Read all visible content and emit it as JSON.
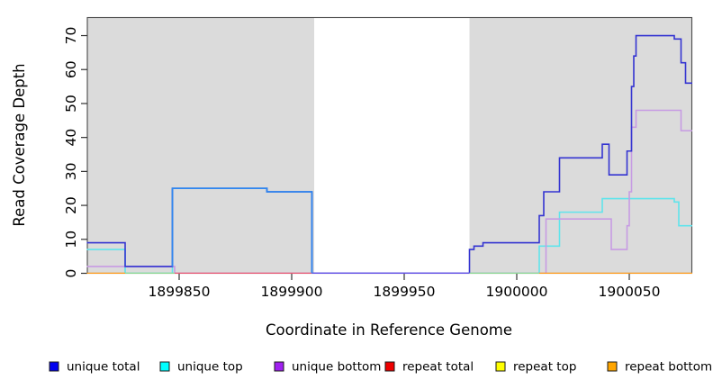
{
  "chart_data": {
    "type": "step-line",
    "title": "",
    "x_axis": {
      "label": "Coordinate in Reference Genome",
      "range": [
        1899809,
        1900078
      ],
      "ticks": [
        1899850,
        1899900,
        1899950,
        1900000,
        1900050
      ]
    },
    "y_axis": {
      "label": "Read Coverage Depth",
      "range": [
        0,
        74
      ],
      "ticks": [
        0,
        10,
        20,
        30,
        40,
        50,
        60,
        70
      ]
    },
    "background_color": "#ffffff",
    "shaded_region_color": "#dbdbdb",
    "shaded_regions": [
      {
        "from": 1899809,
        "to": 1899910
      },
      {
        "from": 1899979,
        "to": 1900078
      }
    ],
    "unshaded_gap": {
      "from": 1899910,
      "to": 1899979
    },
    "series": [
      {
        "name": "unique total",
        "legend_color": "#0000ee",
        "line_color": "#3434d1",
        "steps": [
          [
            1899809,
            9
          ],
          [
            1899826,
            2
          ],
          [
            1899847,
            25
          ],
          [
            1899889,
            24
          ],
          [
            1899909,
            0
          ],
          [
            1899979,
            7
          ],
          [
            1899981,
            8
          ],
          [
            1899985,
            9
          ],
          [
            1900010,
            17
          ],
          [
            1900012,
            24
          ],
          [
            1900019,
            34
          ],
          [
            1900038,
            38
          ],
          [
            1900041,
            29
          ],
          [
            1900049,
            36
          ],
          [
            1900051,
            55
          ],
          [
            1900052,
            64
          ],
          [
            1900053,
            70
          ],
          [
            1900070,
            69
          ],
          [
            1900073,
            62
          ],
          [
            1900075,
            56
          ]
        ],
        "end": 1900078
      },
      {
        "name": "unique top",
        "legend_color": "#00ffff",
        "line_color": "#5fe4ec",
        "steps": [
          [
            1899809,
            7
          ],
          [
            1899826,
            0
          ],
          [
            1899847,
            25
          ],
          [
            1899889,
            24
          ],
          [
            1899909,
            0
          ],
          [
            1900010,
            8
          ],
          [
            1900019,
            18
          ],
          [
            1900038,
            22
          ],
          [
            1900070,
            21
          ],
          [
            1900072,
            14
          ]
        ],
        "end": 1900078
      },
      {
        "name": "unique bottom",
        "legend_color": "#a020f0",
        "line_color": "#c79be3",
        "steps": [
          [
            1899809,
            2
          ],
          [
            1899848,
            0
          ],
          [
            1900013,
            16
          ],
          [
            1900042,
            7
          ],
          [
            1900049,
            14
          ],
          [
            1900050,
            24
          ],
          [
            1900051,
            43
          ],
          [
            1900053,
            48
          ],
          [
            1900073,
            42
          ]
        ],
        "end": 1900078
      },
      {
        "name": "repeat total",
        "legend_color": "#ee0000",
        "line_color": "#e85a75",
        "steps": [
          [
            1899809,
            0
          ]
        ],
        "end": 1900078
      },
      {
        "name": "repeat top",
        "legend_color": "#ffff00",
        "line_color": "#f2e96a",
        "steps": [
          [
            1899809,
            0
          ]
        ],
        "end": 1900078
      },
      {
        "name": "repeat bottom",
        "legend_color": "#ffa500",
        "line_color": "#ff9c1e",
        "steps": [
          [
            1899809,
            0
          ]
        ],
        "end": 1900078
      }
    ],
    "baseline_segments": [
      {
        "from": 1899809,
        "to": 1899826,
        "color": "#ff9c1e"
      },
      {
        "from": 1899826,
        "to": 1899848,
        "color": "#8fd894"
      },
      {
        "from": 1899848,
        "to": 1899909,
        "color": "#e85a75"
      },
      {
        "from": 1899909,
        "to": 1899979,
        "color": "#6450e8"
      },
      {
        "from": 1899979,
        "to": 1900010,
        "color": "#8fd894"
      },
      {
        "from": 1900010,
        "to": 1900078,
        "color": "#ff9c1e"
      }
    ],
    "blend_overrides": [
      {
        "series": "unique total",
        "from_value": 2,
        "steps": [
          [
            1899847,
            25
          ],
          [
            1899889,
            24
          ]
        ],
        "drop_to_zero_at": 1899909,
        "color": "#2e86f0"
      }
    ],
    "legend": [
      {
        "label": "unique total",
        "color": "#0000ee"
      },
      {
        "label": "unique top",
        "color": "#00ffff"
      },
      {
        "label": "unique bottom",
        "color": "#a020f0"
      },
      {
        "label": "repeat total",
        "color": "#ee0000"
      },
      {
        "label": "repeat top",
        "color": "#ffff00"
      },
      {
        "label": "repeat bottom",
        "color": "#ffa500"
      }
    ]
  }
}
